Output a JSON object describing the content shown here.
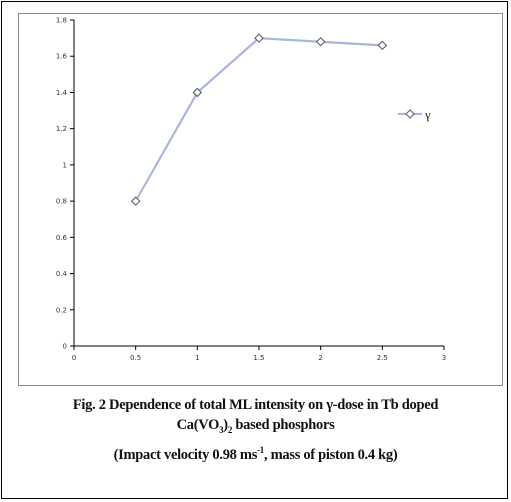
{
  "chart_data": {
    "type": "line",
    "x": [
      0.5,
      1,
      1.5,
      2,
      2.5
    ],
    "series": [
      {
        "name": "γ",
        "values": [
          0.8,
          1.4,
          1.7,
          1.68,
          1.66
        ]
      }
    ],
    "xlim": [
      0,
      3
    ],
    "ylim": [
      0,
      1.8
    ],
    "x_ticks": [
      "0",
      "0.5",
      "1",
      "1.5",
      "2",
      "2.5",
      "3"
    ],
    "y_ticks": [
      "0",
      "0.2",
      "0.4",
      "0.6",
      "0.8",
      "1",
      "1.2",
      "1.4",
      "1.6",
      "1.8"
    ],
    "xlabel": "",
    "ylabel": "",
    "grid": false,
    "legend_position": "right",
    "marker": "diamond",
    "line_color": "#a9b6dd",
    "marker_color": "#5a6070"
  },
  "caption": {
    "line1": "Fig. 2 Dependence of total ML intensity on γ-dose in Tb doped",
    "line2": "Ca(VO3)2 based phosphors",
    "line3": "(Impact velocity 0.98 ms-1, mass of piston 0.4 kg)"
  }
}
